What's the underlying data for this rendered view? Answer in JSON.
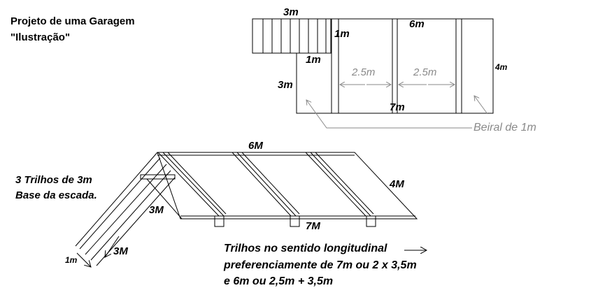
{
  "title": {
    "line1": "Projeto de uma Garagem",
    "line2": "\"Ilustração\""
  },
  "plan": {
    "dim_top_stair": "3m",
    "dim_stair_side": "1m",
    "dim_stair_bottom": "1m",
    "dim_left": "3m",
    "dim_top": "6m",
    "dim_right": "4m",
    "dim_bay1": "2.5m",
    "dim_bay2": "2.5m",
    "dim_bottom": "7m",
    "eave_label": "Beiral de 1m"
  },
  "iso": {
    "dim_top": "6M",
    "dim_right": "4M",
    "dim_bottom": "7M",
    "dim_stair_length": "3M",
    "dim_stair_run": "3M",
    "dim_stair_width": "1m",
    "rails_note_1": "3 Trilhos de 3m",
    "rails_note_2": "Base da escada."
  },
  "note": {
    "line1": "Trilhos no sentido longitudinal",
    "line2": "preferenciamente de 7m  ou 2 x 3,5m",
    "line3": "e 6m  ou  2,5m + 3,5m"
  },
  "colors": {
    "ink": "#000000",
    "dim_gray": "#8a8a8a"
  }
}
